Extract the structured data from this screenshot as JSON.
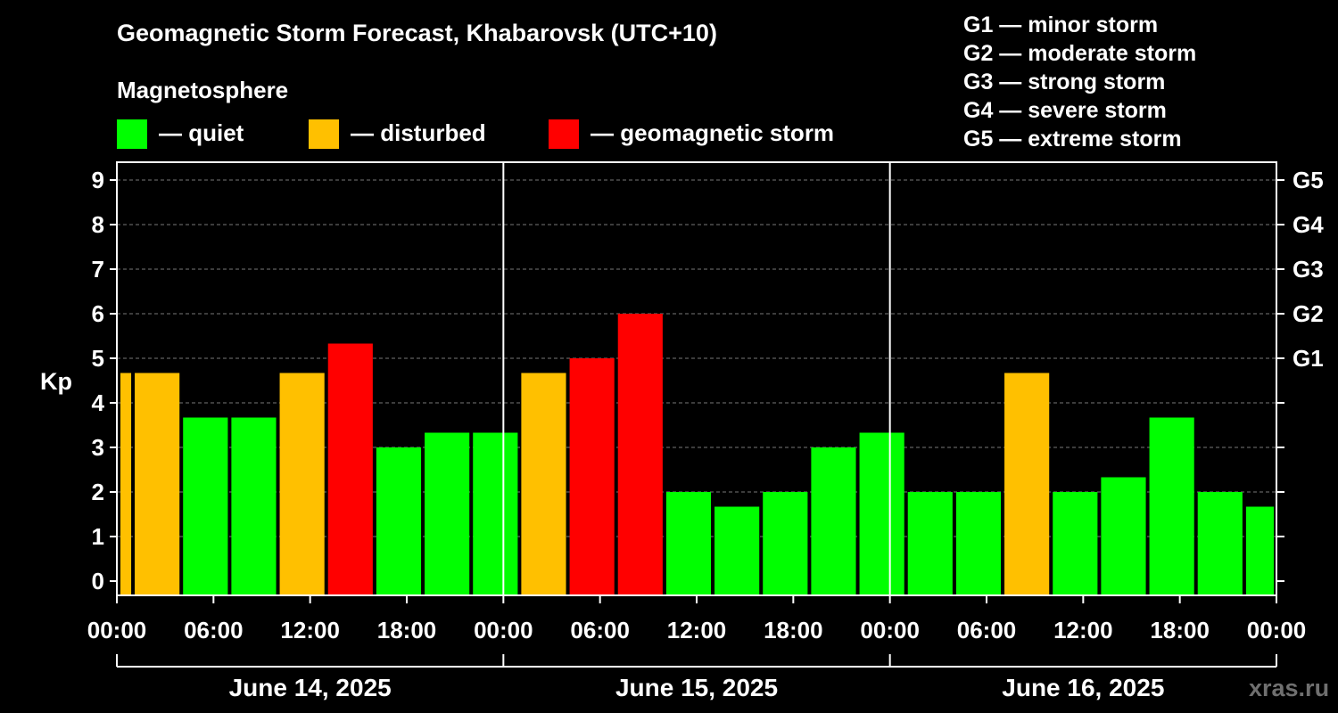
{
  "title": "Geomagnetic Storm Forecast, Khabarovsk (UTC+10)",
  "magnetosphere": {
    "heading": "Magnetosphere",
    "legend": [
      {
        "label": "— quiet",
        "color": "#00ff00"
      },
      {
        "label": "— disturbed",
        "color": "#ffc000"
      },
      {
        "label": "— geomagnetic storm",
        "color": "#ff0000"
      }
    ]
  },
  "storm_scale": [
    "G1 — minor storm",
    "G2 — moderate storm",
    "G3 — strong storm",
    "G4 — severe storm",
    "G5 — extreme storm"
  ],
  "watermark": "xras.ru",
  "chart_data": {
    "type": "bar",
    "ylabel": "Kp",
    "ylim": [
      -0.3,
      9.4
    ],
    "y_ticks": [
      "0",
      "1",
      "2",
      "3",
      "4",
      "5",
      "6",
      "7",
      "8",
      "9"
    ],
    "right_ticks": [
      {
        "value": 5,
        "label": "G1"
      },
      {
        "value": 6,
        "label": "G2"
      },
      {
        "value": 7,
        "label": "G3"
      },
      {
        "value": 8,
        "label": "G4"
      },
      {
        "value": 9,
        "label": "G5"
      }
    ],
    "x_ticks": [
      "00:00",
      "06:00",
      "12:00",
      "18:00",
      "00:00",
      "06:00",
      "12:00",
      "18:00",
      "00:00",
      "06:00",
      "12:00",
      "18:00",
      "00:00"
    ],
    "day_labels": [
      "June 14, 2025",
      "June 15, 2025",
      "June 16, 2025"
    ],
    "grid": true,
    "colors": {
      "quiet": "#00ff00",
      "disturbed": "#ffc000",
      "storm": "#ff0000"
    },
    "bars": [
      {
        "start_hour": 0,
        "end_hour": 1,
        "value": 4.67,
        "status": "disturbed"
      },
      {
        "start_hour": 1,
        "end_hour": 4,
        "value": 4.67,
        "status": "disturbed"
      },
      {
        "start_hour": 4,
        "end_hour": 7,
        "value": 3.67,
        "status": "quiet"
      },
      {
        "start_hour": 7,
        "end_hour": 10,
        "value": 3.67,
        "status": "quiet"
      },
      {
        "start_hour": 10,
        "end_hour": 13,
        "value": 4.67,
        "status": "disturbed"
      },
      {
        "start_hour": 13,
        "end_hour": 16,
        "value": 5.33,
        "status": "storm"
      },
      {
        "start_hour": 16,
        "end_hour": 19,
        "value": 3.0,
        "status": "quiet"
      },
      {
        "start_hour": 19,
        "end_hour": 22,
        "value": 3.33,
        "status": "quiet"
      },
      {
        "start_hour": 22,
        "end_hour": 25,
        "value": 3.33,
        "status": "quiet"
      },
      {
        "start_hour": 25,
        "end_hour": 28,
        "value": 4.67,
        "status": "disturbed"
      },
      {
        "start_hour": 28,
        "end_hour": 31,
        "value": 5.0,
        "status": "storm"
      },
      {
        "start_hour": 31,
        "end_hour": 34,
        "value": 6.0,
        "status": "storm"
      },
      {
        "start_hour": 34,
        "end_hour": 37,
        "value": 2.0,
        "status": "quiet"
      },
      {
        "start_hour": 37,
        "end_hour": 40,
        "value": 1.67,
        "status": "quiet"
      },
      {
        "start_hour": 40,
        "end_hour": 43,
        "value": 2.0,
        "status": "quiet"
      },
      {
        "start_hour": 43,
        "end_hour": 46,
        "value": 3.0,
        "status": "quiet"
      },
      {
        "start_hour": 46,
        "end_hour": 49,
        "value": 3.33,
        "status": "quiet"
      },
      {
        "start_hour": 49,
        "end_hour": 52,
        "value": 2.0,
        "status": "quiet"
      },
      {
        "start_hour": 52,
        "end_hour": 55,
        "value": 2.0,
        "status": "quiet"
      },
      {
        "start_hour": 55,
        "end_hour": 58,
        "value": 4.67,
        "status": "disturbed"
      },
      {
        "start_hour": 58,
        "end_hour": 61,
        "value": 2.0,
        "status": "quiet"
      },
      {
        "start_hour": 61,
        "end_hour": 64,
        "value": 2.33,
        "status": "quiet"
      },
      {
        "start_hour": 64,
        "end_hour": 67,
        "value": 3.67,
        "status": "quiet"
      },
      {
        "start_hour": 67,
        "end_hour": 70,
        "value": 2.0,
        "status": "quiet"
      },
      {
        "start_hour": 70,
        "end_hour": 72,
        "value": 1.67,
        "status": "quiet"
      }
    ]
  }
}
